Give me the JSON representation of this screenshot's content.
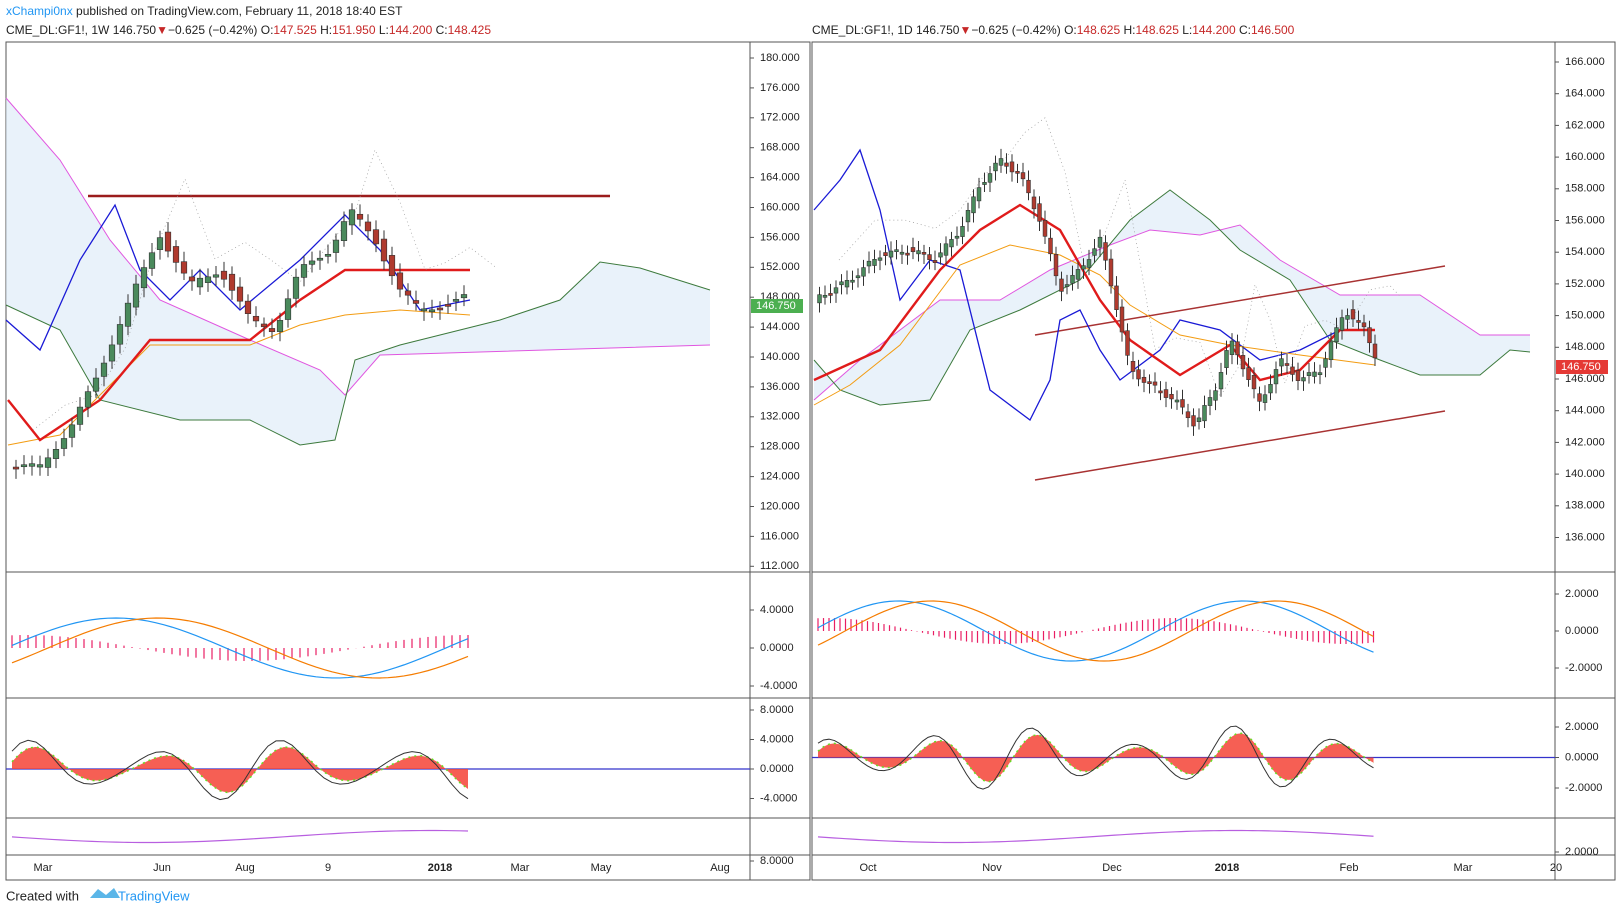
{
  "header": {
    "author": "xChampi0nx",
    "published": "published on TradingView.com, February 11, 2018 18:40 EST"
  },
  "panels": [
    {
      "symbol": "CME_DL:GF1!, 1W",
      "price": "146.750",
      "arrow": "▼",
      "change": "−0.625 (−0.42%)",
      "ohlc": [
        {
          "k": "O:",
          "v": "147.525"
        },
        {
          "k": "H:",
          "v": "151.950"
        },
        {
          "k": "L:",
          "v": "144.200"
        },
        {
          "k": "C:",
          "v": "148.425"
        }
      ],
      "last": "146.750",
      "price_ticks": [
        "180.000",
        "176.000",
        "172.000",
        "168.000",
        "164.000",
        "160.000",
        "156.000",
        "152.000",
        "148.000",
        "144.000",
        "140.000",
        "136.000",
        "132.000",
        "128.000",
        "124.000",
        "120.000",
        "116.000",
        "112.000"
      ],
      "macd_ticks": [
        "4.0000",
        "0.0000",
        "-4.0000"
      ],
      "osc_ticks": [
        "8.0000",
        "4.0000",
        "0.0000",
        "-4.0000"
      ],
      "low_ticks": [
        "8.0000"
      ],
      "x_labels": [
        "Mar",
        "Jun",
        "Aug",
        "9",
        "2018",
        "Mar",
        "May",
        "Aug"
      ]
    },
    {
      "symbol": "CME_DL:GF1!, 1D",
      "price": "146.750",
      "arrow": "▼",
      "change": "−0.625 (−0.42%)",
      "ohlc": [
        {
          "k": "O:",
          "v": "148.625"
        },
        {
          "k": "H:",
          "v": "148.625"
        },
        {
          "k": "L:",
          "v": "144.200"
        },
        {
          "k": "C:",
          "v": "146.500"
        }
      ],
      "last": "146.750",
      "price_ticks": [
        "166.000",
        "164.000",
        "162.000",
        "160.000",
        "158.000",
        "156.000",
        "154.000",
        "152.000",
        "150.000",
        "148.000",
        "146.000",
        "144.000",
        "142.000",
        "140.000",
        "138.000",
        "136.000"
      ],
      "macd_ticks": [
        "2.0000",
        "0.0000",
        "-2.0000"
      ],
      "osc_ticks": [
        "2.0000",
        "0.0000",
        "-2.0000"
      ],
      "low_ticks": [
        "2.0000"
      ],
      "x_labels": [
        "Oct",
        "Nov",
        "Dec",
        "2018",
        "Feb",
        "Mar",
        "20"
      ]
    }
  ],
  "footer": {
    "created": "Created with",
    "brand": "TradingView"
  }
}
